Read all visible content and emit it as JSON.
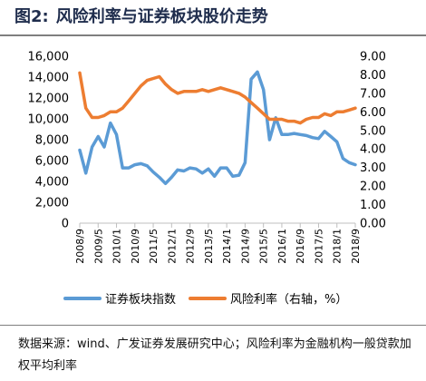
{
  "header": {
    "figure_no": "图2:",
    "title": "风险利率与证券板块股价走势"
  },
  "source_note": "数据来源：wind、广发证券发展研究中心；风险利率为金融机构一般贷款加权平均利率",
  "colors": {
    "securities_index": "#5b9bd5",
    "risk_rate": "#ed7d31",
    "axis": "#bfbfbf",
    "text": "#000000"
  },
  "chart_data": {
    "type": "line",
    "title": "",
    "x_labels": [
      "2008/9",
      "2009/5",
      "2010/1",
      "2010/9",
      "2011/5",
      "2012/1",
      "2012/9",
      "2013/5",
      "2014/1",
      "2014/9",
      "2015/5",
      "2016/1",
      "2016/9",
      "2017/5",
      "2018/1",
      "2018/9"
    ],
    "y_left": {
      "min": 0,
      "max": 16000,
      "ticks": [
        "0",
        "2,000",
        "4,000",
        "6,000",
        "8,000",
        "10,000",
        "12,000",
        "14,000",
        "16,000"
      ]
    },
    "y_right": {
      "min": 0,
      "max": 9,
      "ticks": [
        "0.00",
        "1.00",
        "2.00",
        "3.00",
        "4.00",
        "5.00",
        "6.00",
        "7.00",
        "8.00",
        "9.00"
      ]
    },
    "legend_position": "bottom",
    "series": [
      {
        "name": "证券板块指数",
        "axis": "left",
        "x": [
          0,
          0.33,
          0.67,
          1,
          1.33,
          1.67,
          2,
          2.33,
          2.67,
          3,
          3.33,
          3.67,
          4,
          4.33,
          4.67,
          5,
          5.33,
          5.67,
          6,
          6.33,
          6.67,
          7,
          7.33,
          7.67,
          8,
          8.33,
          8.67,
          9,
          9.33,
          9.67,
          10,
          10.33,
          10.67,
          11,
          11.33,
          11.67,
          12,
          12.33,
          12.67,
          13,
          13.33,
          13.67,
          14,
          14.33,
          14.67,
          15
        ],
        "values": [
          7000,
          4800,
          7300,
          8300,
          7300,
          9600,
          8500,
          5300,
          5300,
          5600,
          5700,
          5500,
          4900,
          4400,
          3800,
          4400,
          5100,
          5000,
          5300,
          5200,
          4800,
          5200,
          4500,
          5300,
          5300,
          4500,
          4600,
          5800,
          13800,
          14500,
          12800,
          8000,
          10100,
          8500,
          8500,
          8600,
          8500,
          8400,
          8200,
          8100,
          8800,
          8300,
          7800,
          6200,
          5800,
          5600
        ]
      },
      {
        "name": "风险利率（右轴，%）",
        "axis": "right",
        "x": [
          0,
          0.33,
          0.67,
          1,
          1.33,
          1.67,
          2,
          2.33,
          2.67,
          3,
          3.33,
          3.67,
          4,
          4.33,
          4.67,
          5,
          5.33,
          5.67,
          6,
          6.33,
          6.67,
          7,
          7.33,
          7.67,
          8,
          8.33,
          8.67,
          9,
          9.33,
          9.67,
          10,
          10.33,
          10.67,
          11,
          11.33,
          11.67,
          12,
          12.33,
          12.67,
          13,
          13.33,
          13.67,
          14,
          14.33,
          14.67,
          15
        ],
        "values": [
          8.1,
          6.2,
          5.7,
          5.7,
          5.8,
          6.0,
          6.0,
          6.2,
          6.6,
          7.0,
          7.4,
          7.7,
          7.8,
          7.9,
          7.5,
          7.2,
          7.0,
          7.1,
          7.1,
          7.1,
          7.2,
          7.1,
          7.2,
          7.3,
          7.2,
          7.1,
          7.0,
          6.8,
          6.5,
          6.2,
          5.9,
          5.6,
          5.6,
          5.6,
          5.5,
          5.5,
          5.4,
          5.6,
          5.7,
          5.7,
          5.9,
          5.8,
          6.0,
          6.0,
          6.1,
          6.2
        ]
      }
    ]
  }
}
